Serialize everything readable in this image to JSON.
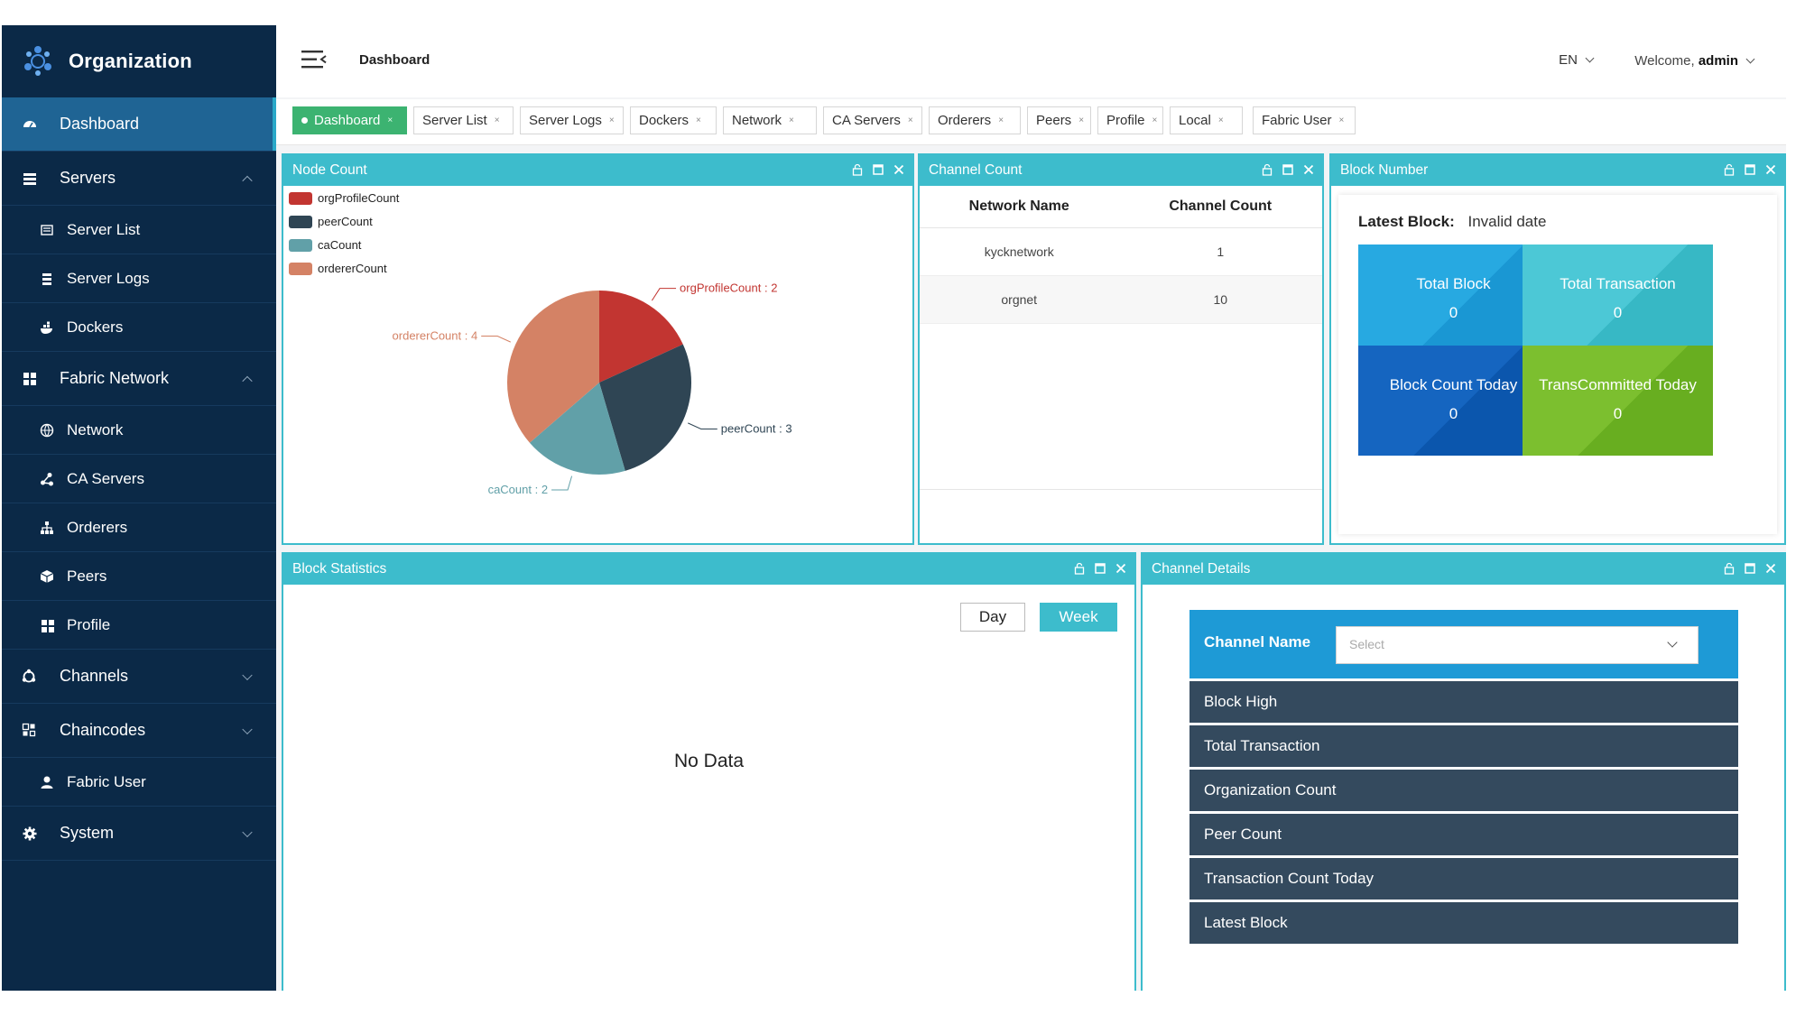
{
  "app": {
    "brand": "Organization",
    "page_title": "Dashboard",
    "lang": "EN",
    "welcome_prefix": "Welcome,",
    "user": "admin"
  },
  "sidebar": [
    {
      "label": "Dashboard",
      "icon": "dashboard-icon",
      "level": "top",
      "active": true
    },
    {
      "label": "Servers",
      "icon": "server-icon",
      "level": "top",
      "chevron": "up"
    },
    {
      "label": "Server List",
      "icon": "list-icon",
      "level": "sub"
    },
    {
      "label": "Server Logs",
      "icon": "logs-icon",
      "level": "sub"
    },
    {
      "label": "Dockers",
      "icon": "docker-icon",
      "level": "sub"
    },
    {
      "label": "Fabric Network",
      "icon": "grid-icon",
      "level": "top",
      "chevron": "up"
    },
    {
      "label": "Network",
      "icon": "globe-icon",
      "level": "sub"
    },
    {
      "label": "CA Servers",
      "icon": "share-icon",
      "level": "sub"
    },
    {
      "label": "Orderers",
      "icon": "sitemap-icon",
      "level": "sub"
    },
    {
      "label": "Peers",
      "icon": "cube-icon",
      "level": "sub"
    },
    {
      "label": "Profile",
      "icon": "grid-icon",
      "level": "sub"
    },
    {
      "label": "Channels",
      "icon": "channels-icon",
      "level": "top",
      "chevron": "down"
    },
    {
      "label": "Chaincodes",
      "icon": "chaincode-icon",
      "level": "top",
      "chevron": "down"
    },
    {
      "label": "Fabric User",
      "icon": "user-icon",
      "level": "sub"
    },
    {
      "label": "System",
      "icon": "gear-icon",
      "level": "top",
      "chevron": "down"
    }
  ],
  "tabs": [
    {
      "label": "Dashboard",
      "active": true
    },
    {
      "label": "Server List"
    },
    {
      "label": "Server Logs"
    },
    {
      "label": "Dockers"
    },
    {
      "label": "Network"
    },
    {
      "label": "CA Servers"
    },
    {
      "label": "Orderers"
    },
    {
      "label": "Peers"
    },
    {
      "label": "Profile"
    },
    {
      "label": "Local"
    },
    {
      "label": "Fabric User"
    }
  ],
  "tab_close": "×",
  "panels": {
    "node_count": "Node Count",
    "channel_count": "Channel Count",
    "block_number": "Block Number",
    "block_statistics": "Block Statistics",
    "channel_details": "Channel Details"
  },
  "chart_data": {
    "type": "pie",
    "series": [
      {
        "name": "orgProfileCount",
        "value": 2,
        "color": "#c23531"
      },
      {
        "name": "peerCount",
        "value": 3,
        "color": "#2f4554"
      },
      {
        "name": "caCount",
        "value": 2,
        "color": "#61a0a8"
      },
      {
        "name": "ordererCount",
        "value": 4,
        "color": "#d48265"
      }
    ]
  },
  "channel_table": {
    "headers": [
      "Network Name",
      "Channel Count"
    ],
    "rows": [
      [
        "kycknetwork",
        "1"
      ],
      [
        "orgnet",
        "10"
      ]
    ]
  },
  "block_number": {
    "latest_label": "Latest Block:",
    "latest_value": "Invalid date",
    "cards": [
      {
        "label": "Total Block",
        "value": "0",
        "color": "#27a9e1",
        "color2": "#1a97d3"
      },
      {
        "label": "Total Transaction",
        "value": "0",
        "color": "#4cc8d6",
        "color2": "#37b8c5"
      },
      {
        "label": "Block Count Today",
        "value": "0",
        "color": "#1565c0",
        "color2": "#0b56ad"
      },
      {
        "label": "TransCommitted Today",
        "value": "0",
        "color": "#7cbf2f",
        "color2": "#68ae20"
      }
    ]
  },
  "block_stats": {
    "btn_day": "Day",
    "btn_week": "Week",
    "empty": "No Data"
  },
  "channel_details": {
    "header_label": "Channel Name",
    "select_placeholder": "Select",
    "rows": [
      "Block High",
      "Total Transaction",
      "Organization Count",
      "Peer Count",
      "Transaction Count Today",
      "Latest Block"
    ]
  },
  "colors": {
    "sidebar_bg": "#0b2947",
    "active_bg": "#1f6494",
    "panel_accent": "#3dbccc",
    "tab_active": "#3cb371"
  }
}
